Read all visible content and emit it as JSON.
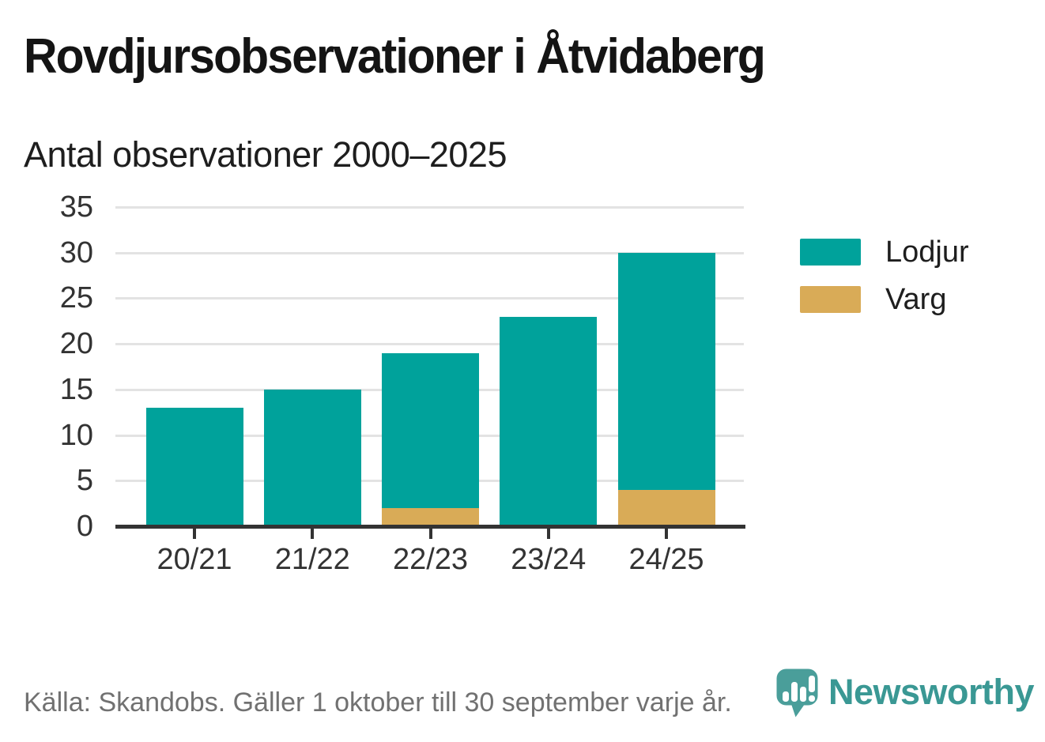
{
  "title": "Rovdjursobservationer i Åtvidaberg",
  "subtitle": "Antal observationer 2000–2025",
  "footer": {
    "source": "Källa: Skandobs. Gäller 1 oktober till 30 september varje år."
  },
  "branding": {
    "name": "Newsworthy",
    "logo_icon": "newsworthy-speech-bubble-bar-chart-icon",
    "wordmark_color": "#3a9894",
    "icon_color": "#4a9e9a"
  },
  "legend": [
    {
      "label": "Lodjur",
      "color": "#00a29b"
    },
    {
      "label": "Varg",
      "color": "#d9ab57"
    }
  ],
  "colors": {
    "lodjur": "#00a29b",
    "varg": "#d9ab57",
    "gridline": "#e3e3e3",
    "axis": "#333333",
    "tick_label": "#333333"
  },
  "chart_data": {
    "type": "bar",
    "stacked": true,
    "categories": [
      "20/21",
      "21/22",
      "22/23",
      "23/24",
      "24/25"
    ],
    "series": [
      {
        "name": "Lodjur",
        "color": "#00a29b",
        "values": [
          13,
          15,
          17,
          23,
          26
        ]
      },
      {
        "name": "Varg",
        "color": "#d9ab57",
        "values": [
          0,
          0,
          2,
          0,
          4
        ]
      }
    ],
    "stack_order_bottom_to_top": [
      "Varg",
      "Lodjur"
    ],
    "totals": [
      13,
      15,
      19,
      23,
      30
    ],
    "title": "Rovdjursobservationer i Åtvidaberg",
    "subtitle": "Antal observationer 2000–2025",
    "xlabel": "",
    "ylabel": "",
    "ylim": [
      0,
      35
    ],
    "yticks": [
      0,
      5,
      10,
      15,
      20,
      25,
      30,
      35
    ],
    "grid": true,
    "legend_position": "right"
  }
}
